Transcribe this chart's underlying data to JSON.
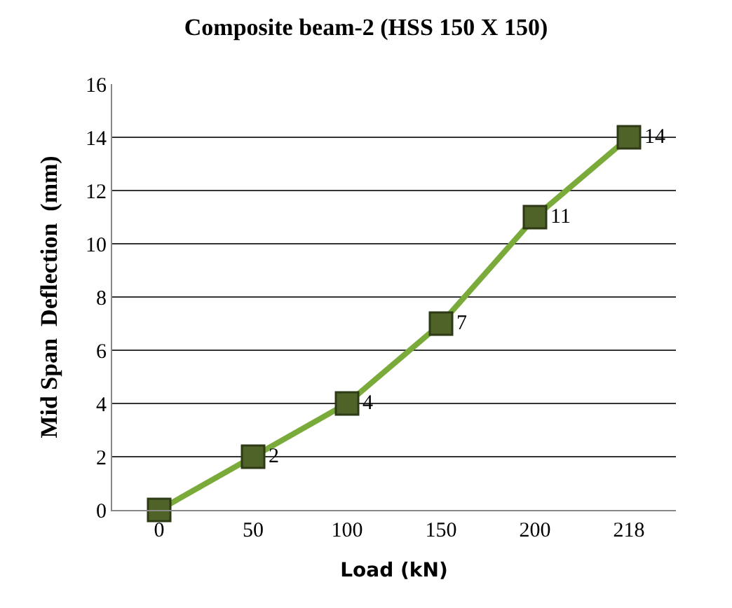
{
  "chart_data": {
    "type": "line",
    "title": "Composite beam-2 (HSS 150 X 150)",
    "xlabel": "Load (kN)",
    "ylabel": "Mid Span  Deflection  (mm)",
    "categories": [
      "0",
      "50",
      "100",
      "150",
      "200",
      "218"
    ],
    "series": [
      {
        "color": "#7aab3a",
        "values": [
          0,
          2,
          4,
          7,
          11,
          14
        ],
        "value_labels": [
          null,
          "2",
          "4",
          "7",
          "11",
          "14"
        ]
      }
    ],
    "ylim": [
      0,
      16
    ],
    "yticks": [
      0,
      2,
      4,
      6,
      8,
      10,
      12,
      14,
      16
    ],
    "grid": "y",
    "legend": false,
    "marker": "square",
    "line_style": "solid"
  }
}
